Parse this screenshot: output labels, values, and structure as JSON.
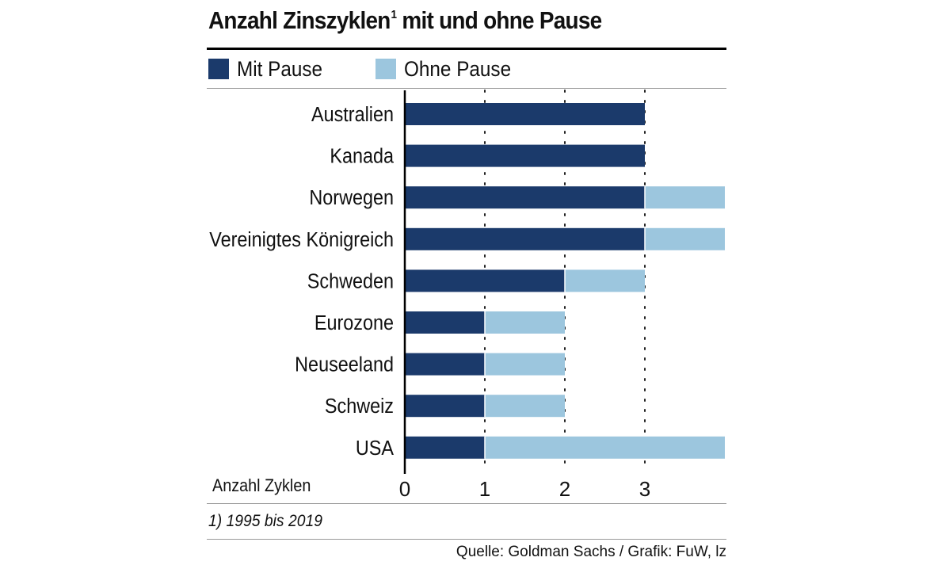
{
  "chart_data": {
    "type": "bar",
    "orientation": "horizontal",
    "stacked": true,
    "title": "Anzahl Zinszyklen",
    "title_superscript": "1",
    "title_suffix": "mit und ohne Pause",
    "categories": [
      "Australien",
      "Kanada",
      "Norwegen",
      "Vereinigtes Königreich",
      "Schweden",
      "Eurozone",
      "Neuseeland",
      "Schweiz",
      "USA"
    ],
    "series": [
      {
        "name": "Mit Pause",
        "color": "#1b3a6b",
        "values": [
          3,
          3,
          3,
          3,
          2,
          1,
          1,
          1,
          1
        ]
      },
      {
        "name": "Ohne Pause",
        "color": "#9cc6de",
        "values": [
          0,
          0,
          1,
          1,
          1,
          1,
          1,
          1,
          3
        ]
      }
    ],
    "xlabel": "Anzahl Zyklen",
    "ylabel": "",
    "xlim": [
      0,
      4
    ],
    "xticks": [
      0,
      1,
      2,
      3
    ],
    "xtick_labels": [
      "0",
      "1",
      "2",
      "3"
    ],
    "grid": "dotted vertical",
    "legend_position": "top-left",
    "footnote": "1) 1995 bis 2019",
    "source": "Quelle: Goldman Sachs / Grafik: FuW, lz"
  }
}
